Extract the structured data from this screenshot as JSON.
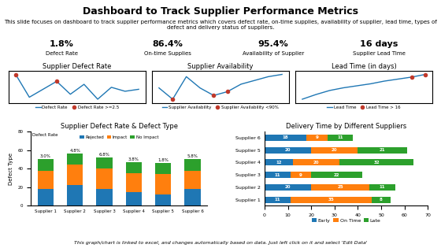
{
  "title": "Dashboard to Track Supplier Performance Metrics",
  "subtitle": "This slide focuses on dashboard to track supplier performance metrics which covers defect rate, on-time supplies, availability of supplier, lead time, types of defect and delivery status of suppliers.",
  "annotations": [
    "This graph/chart is linked to excel, and changes automatically based on data. Just left click on it and select 'Edit Data'"
  ],
  "chart_data": [
    {
      "type": "kpi",
      "categories": [
        "Defect Rate",
        "On-time Supplies",
        "Availability of Supplier",
        "Supplier Lead Time"
      ],
      "values": [
        1.8,
        86.4,
        95.4,
        16
      ],
      "value_labels": [
        "1.8%",
        "86.4%",
        "95.4%",
        "16 days"
      ],
      "data_labels": true
    },
    {
      "type": "line",
      "title": "Supplier Defect Rate",
      "x": [
        1,
        2,
        3,
        4,
        5,
        6,
        7,
        8,
        9,
        10
      ],
      "series": [
        {
          "name": "Defect Rate",
          "type": "line",
          "values": [
            4.5,
            2.2,
            3.0,
            3.8,
            2.5,
            3.5,
            2.0,
            3.2,
            2.8,
            3.0
          ]
        },
        {
          "name": "Defect Rate >=2.5",
          "type": "scatter",
          "marker": "circle",
          "color": "#c0392b",
          "values": [
            4.5,
            null,
            null,
            3.8,
            null,
            null,
            null,
            null,
            null,
            null
          ]
        }
      ],
      "xlim": [
        0.5,
        10.5
      ],
      "ylim": [
        1.625,
        4.875
      ],
      "xticks": [],
      "yticks": [],
      "tick_labels": false,
      "legend": "upper center"
    },
    {
      "type": "line",
      "title": "Supplier Availability",
      "x": [
        1,
        2,
        3,
        4,
        5,
        6,
        7,
        8,
        9,
        10
      ],
      "series": [
        {
          "name": "Supplier Availability",
          "type": "line",
          "values": [
            3.0,
            1.5,
            4.5,
            3.0,
            2.0,
            2.5,
            3.5,
            4.0,
            4.5,
            4.8
          ]
        },
        {
          "name": "Supplier Availability <90%",
          "type": "scatter",
          "marker": "circle",
          "color": "#c0392b",
          "values": [
            null,
            1.5,
            null,
            null,
            2.0,
            2.5,
            null,
            null,
            null,
            null
          ]
        }
      ],
      "xlim": [
        0.5,
        10.5
      ],
      "ylim": [
        1.005,
        5.295
      ],
      "xticks": [],
      "yticks": [],
      "tick_labels": false,
      "legend": "upper center"
    },
    {
      "type": "line",
      "title": "Lead Time (in days)",
      "x": [
        1,
        2,
        3,
        4,
        5,
        6,
        7,
        8,
        9,
        10
      ],
      "series": [
        {
          "name": "Lead Time",
          "type": "line",
          "values": [
            1.5,
            2.2,
            2.8,
            3.2,
            3.5,
            3.8,
            4.2,
            4.5,
            4.8,
            5.2
          ]
        },
        {
          "name": "Lead Time > 16",
          "type": "scatter",
          "marker": "circle",
          "color": "#c0392b",
          "values": [
            null,
            null,
            null,
            null,
            null,
            null,
            null,
            null,
            4.8,
            5.2
          ]
        }
      ],
      "xlim": [
        0.5,
        10.5
      ],
      "ylim": [
        0.945,
        5.755
      ],
      "xticks": [],
      "yticks": [],
      "tick_labels": false,
      "legend": "upper center"
    },
    {
      "type": "bar",
      "title": "Supplier Defect Rate & Defect Type",
      "y_label": "Defect Type",
      "stacked": true,
      "categories": [
        "Supplier 1",
        "Supplier 2",
        "Supplier 3",
        "Supplier 4",
        "Supplier 5",
        "Supplier 6"
      ],
      "series": [
        {
          "name": "Rejected",
          "values": [
            18,
            22,
            18,
            15,
            12,
            18
          ]
        },
        {
          "name": "Impact",
          "values": [
            20,
            22,
            22,
            20,
            22,
            20
          ]
        },
        {
          "name": "No Impact",
          "values": [
            12,
            12,
            12,
            12,
            12,
            12
          ]
        }
      ],
      "defect_rate": {
        "name": "Defect Rate",
        "values": [
          3.0,
          4.8,
          6.8,
          3.8,
          1.8,
          5.8
        ],
        "value_labels": [
          "3.0%",
          "4.8%",
          "6.8%",
          "3.8%",
          "1.8%",
          "5.8%"
        ]
      },
      "ylim": [
        0,
        80
      ],
      "yticks": [
        0,
        20,
        40,
        60,
        80
      ],
      "legend": "upper center"
    },
    {
      "type": "bar",
      "orientation": "horizontal",
      "title": "Delivery Time by Different Suppliers",
      "stacked": true,
      "data_labels": true,
      "categories": [
        "Supplier 1",
        "Supplier 2",
        "Supplier 3",
        "Supplier 4",
        "Supplier 5",
        "Supplier 6"
      ],
      "series": [
        {
          "name": "Early",
          "values": [
            11,
            20,
            11,
            12,
            20,
            18
          ]
        },
        {
          "name": "On Time",
          "values": [
            35,
            25,
            9,
            20,
            20,
            9
          ]
        },
        {
          "name": "Late",
          "values": [
            8,
            11,
            22,
            32,
            21,
            11
          ]
        }
      ],
      "xlim": [
        0,
        70
      ],
      "xticks": [
        0,
        10,
        20,
        30,
        40,
        50,
        60,
        70
      ],
      "legend": "upper center"
    }
  ]
}
